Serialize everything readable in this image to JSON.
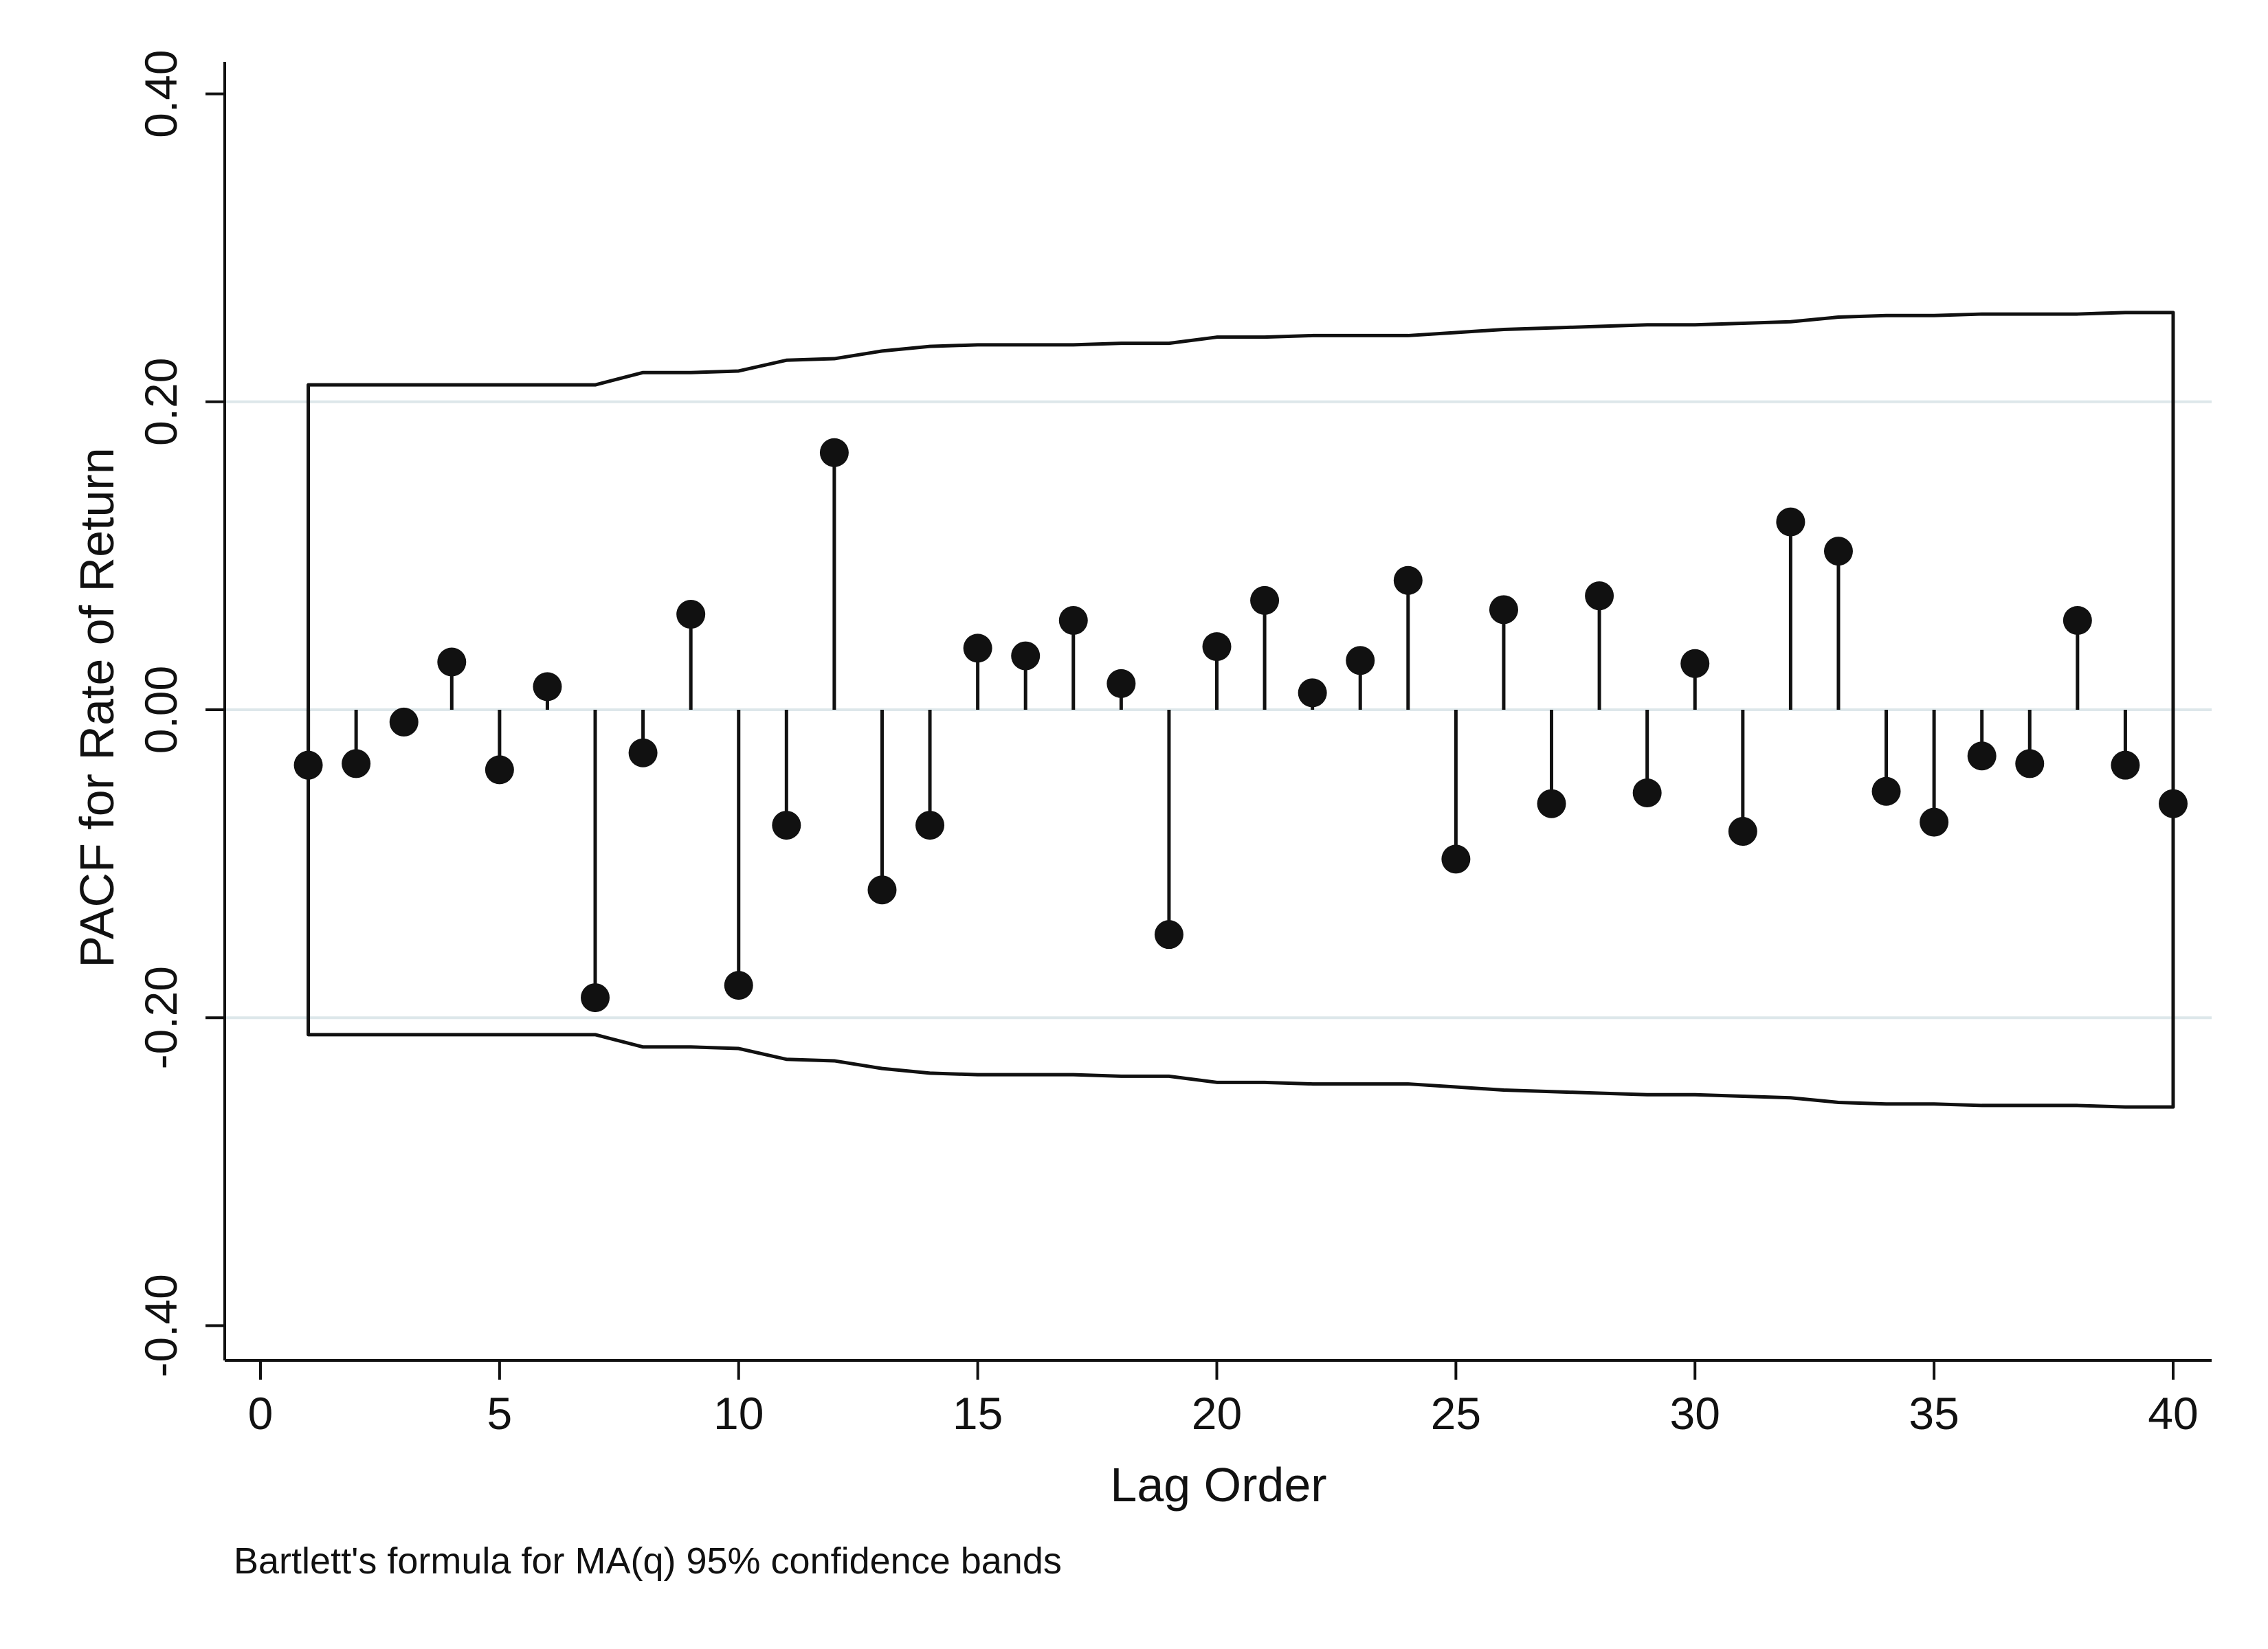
{
  "chart_data": {
    "type": "stem",
    "xlabel": "Lag Order",
    "ylabel": "PACF for Rate of Return",
    "note": "Bartlett's formula for MA(q) 95% confidence bands",
    "xlim": [
      -0.7,
      40.8
    ],
    "ylim": [
      -0.42,
      0.42
    ],
    "xticks": [
      0,
      5,
      10,
      15,
      20,
      25,
      30,
      35,
      40
    ],
    "xtick_labels": [
      "0",
      "5",
      "10",
      "15",
      "20",
      "25",
      "30",
      "35",
      "40"
    ],
    "yticks": [
      0.4,
      0.2,
      0.0,
      -0.2,
      -0.4
    ],
    "ytick_labels": [
      "0.40",
      "0.20",
      "0.00",
      "-0.20",
      "-0.40"
    ],
    "grid": true,
    "lags": [
      1,
      2,
      3,
      4,
      5,
      6,
      7,
      8,
      9,
      10,
      11,
      12,
      13,
      14,
      15,
      16,
      17,
      18,
      19,
      20,
      21,
      22,
      23,
      24,
      25,
      26,
      27,
      28,
      29,
      30,
      31,
      32,
      33,
      34,
      35,
      36,
      37,
      38,
      39,
      40
    ],
    "pacf": [
      -0.036,
      -0.035,
      -0.008,
      0.031,
      -0.039,
      0.015,
      -0.187,
      -0.028,
      0.062,
      -0.179,
      -0.075,
      0.167,
      -0.117,
      -0.075,
      0.04,
      0.035,
      0.058,
      0.017,
      -0.146,
      0.041,
      0.071,
      0.011,
      0.032,
      0.084,
      -0.097,
      0.065,
      -0.061,
      0.074,
      -0.054,
      0.03,
      -0.079,
      0.122,
      0.103,
      -0.053,
      -0.073,
      -0.03,
      -0.035,
      0.058,
      -0.036,
      -0.061
    ],
    "conf_band": [
      0.211,
      0.211,
      0.211,
      0.211,
      0.211,
      0.211,
      0.211,
      0.219,
      0.219,
      0.22,
      0.227,
      0.228,
      0.233,
      0.236,
      0.237,
      0.237,
      0.237,
      0.238,
      0.238,
      0.242,
      0.242,
      0.243,
      0.243,
      0.243,
      0.245,
      0.247,
      0.248,
      0.249,
      0.25,
      0.25,
      0.251,
      0.252,
      0.255,
      0.256,
      0.256,
      0.257,
      0.257,
      0.257,
      0.258,
      0.258
    ],
    "colors": {
      "marker": "#111111",
      "band": "#111111",
      "grid": "#dde7ea"
    }
  }
}
